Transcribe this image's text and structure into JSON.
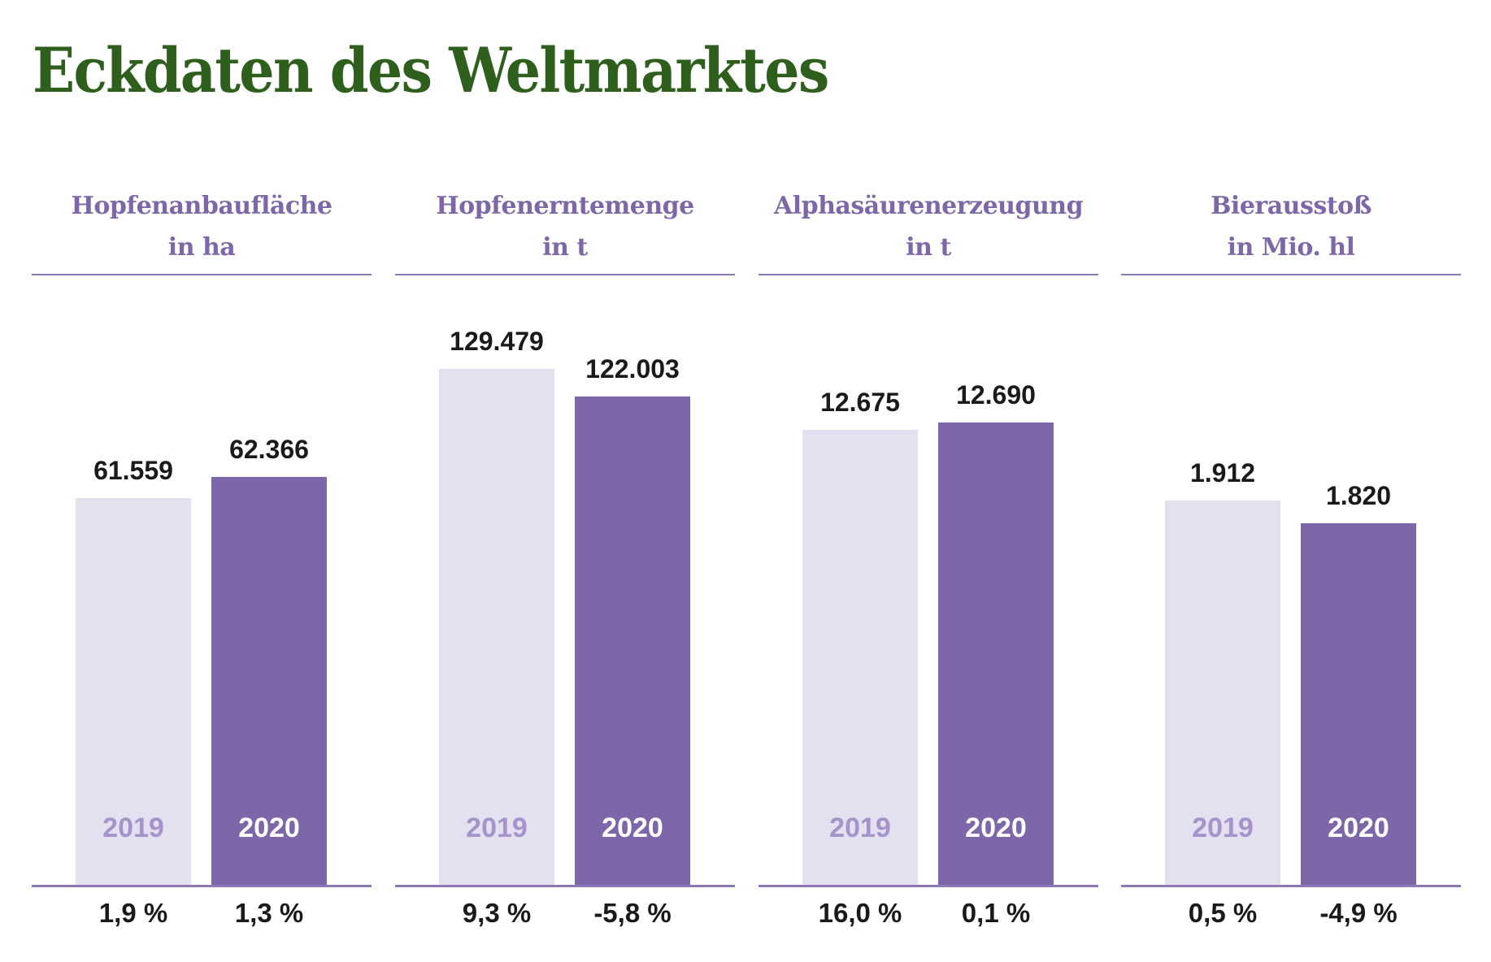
{
  "title": "Eckdaten des Weltmarktes",
  "colors": {
    "title": "#2f5f1d",
    "accent": "#7e67a8",
    "bar_2019": "#e3e0f0",
    "bar_2020": "#7e67a8"
  },
  "chart_data": [
    {
      "type": "bar",
      "title_line1": "Hopfenanbaufläche",
      "title_line2": "in ha",
      "categories": [
        "2019",
        "2020"
      ],
      "values": [
        61559,
        62366
      ],
      "value_labels": [
        "61.559",
        "62.366"
      ],
      "change_labels": [
        "1,9 %",
        "1,3 %"
      ]
    },
    {
      "type": "bar",
      "title_line1": "Hopfenerntemenge",
      "title_line2": "in t",
      "categories": [
        "2019",
        "2020"
      ],
      "values": [
        129479,
        122003
      ],
      "value_labels": [
        "129.479",
        "122.003"
      ],
      "change_labels": [
        "9,3 %",
        "-5,8 %"
      ]
    },
    {
      "type": "bar",
      "title_line1": "Alphasäurenerzeugung",
      "title_line2": "in t",
      "categories": [
        "2019",
        "2020"
      ],
      "values": [
        12675,
        12690
      ],
      "value_labels": [
        "12.675",
        "12.690"
      ],
      "change_labels": [
        "16,0 %",
        "0,1 %"
      ]
    },
    {
      "type": "bar",
      "title_line1": "Bierausstoß",
      "title_line2": "in Mio. hl",
      "categories": [
        "2019",
        "2020"
      ],
      "values": [
        1912,
        1820
      ],
      "value_labels": [
        "1.912",
        "1.820"
      ],
      "change_labels": [
        "0,5 %",
        "-4,9 %"
      ]
    }
  ]
}
